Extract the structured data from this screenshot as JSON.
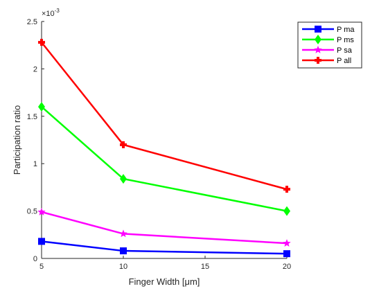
{
  "chart_data": {
    "type": "line",
    "xlabel": "Finger Width [μm]",
    "ylabel": "Participation ratio",
    "y_exponent_label": "×10",
    "y_exponent_power": "-3",
    "x": [
      5,
      10,
      20
    ],
    "xlim": [
      5,
      20
    ],
    "ylim": [
      0,
      2.5
    ],
    "x_ticks": [
      5,
      10,
      15,
      20
    ],
    "x_tick_labels": [
      "5",
      "10",
      "15",
      "20"
    ],
    "y_ticks": [
      0,
      0.5,
      1,
      1.5,
      2,
      2.5
    ],
    "y_tick_labels": [
      "0",
      "0.5",
      "1",
      "1.5",
      "2",
      "2.5"
    ],
    "grid": false,
    "legend_position": "top-right",
    "series": [
      {
        "name": "P ma",
        "color": "#0000ff",
        "marker": "square",
        "values": [
          0.18,
          0.08,
          0.05
        ]
      },
      {
        "name": "P ms",
        "color": "#00ff00",
        "marker": "diamond",
        "values": [
          1.6,
          0.84,
          0.5
        ]
      },
      {
        "name": "P sa",
        "color": "#ff00ff",
        "marker": "star",
        "values": [
          0.49,
          0.26,
          0.16
        ]
      },
      {
        "name": "P all",
        "color": "#ff0000",
        "marker": "cross",
        "values": [
          2.28,
          1.2,
          0.73
        ]
      }
    ]
  }
}
